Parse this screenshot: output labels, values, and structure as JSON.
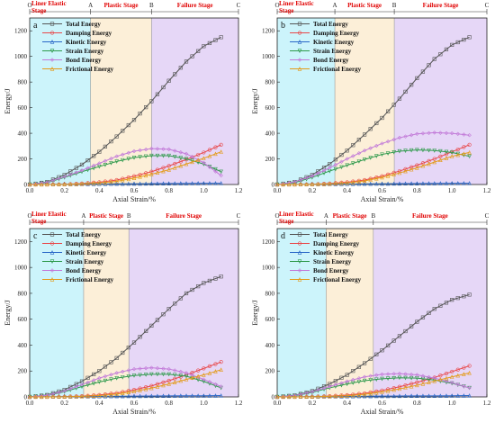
{
  "figure": {
    "background": "#ffffff"
  },
  "stage_colors": {
    "elastic": "#ccf4fb",
    "plastic": "#fcefd8",
    "failure": "#e6d7f7"
  },
  "series_colors": [
    "#555555",
    "#e8484a",
    "#2a68c7",
    "#2f9a4c",
    "#c27ad8",
    "#e39b1a"
  ],
  "stage_label_color": "#e00000",
  "chart_data": [
    {
      "type": "line",
      "panel": "a",
      "xlabel": "Axial Strain/%",
      "ylabel": "Energy/J",
      "xlim": [
        0,
        1.2
      ],
      "ylim": [
        0,
        1300
      ],
      "xticks": [
        "0.0",
        "0.2",
        "0.4",
        "0.6",
        "0.8",
        "1.0",
        "1.2"
      ],
      "yticks": [
        "0",
        "200",
        "400",
        "600",
        "800",
        "1000",
        "1200"
      ],
      "stage_points": [
        {
          "letter": "O",
          "x": 0.0
        },
        {
          "letter": "A",
          "x": 0.35
        },
        {
          "letter": "B",
          "x": 0.7
        },
        {
          "letter": "C",
          "x": 1.2
        }
      ],
      "stages": [
        {
          "name": "Liner Elastic Stage",
          "from": 0.0,
          "to": 0.35
        },
        {
          "name": "Plastic Stage",
          "from": 0.35,
          "to": 0.7
        },
        {
          "name": "Failure Stage",
          "from": 0.7,
          "to": 1.2
        }
      ],
      "x": [
        0.0,
        0.1,
        0.2,
        0.3,
        0.4,
        0.5,
        0.6,
        0.7,
        0.8,
        0.9,
        1.0,
        1.1
      ],
      "series": [
        {
          "name": "Total Energy",
          "values": [
            0,
            20,
            75,
            155,
            255,
            375,
            505,
            650,
            810,
            960,
            1080,
            1150
          ]
        },
        {
          "name": "Damping Energy",
          "values": [
            0,
            0,
            2,
            8,
            18,
            35,
            65,
            100,
            145,
            195,
            250,
            310
          ]
        },
        {
          "name": "Kinetic Energy",
          "values": [
            0,
            1,
            2,
            3,
            4,
            5,
            6,
            7,
            8,
            9,
            10,
            10
          ]
        },
        {
          "name": "Strain Energy",
          "values": [
            0,
            15,
            55,
            100,
            140,
            180,
            210,
            225,
            225,
            200,
            160,
            100
          ]
        },
        {
          "name": "Bond Energy",
          "values": [
            0,
            18,
            60,
            110,
            165,
            220,
            260,
            280,
            275,
            240,
            170,
            70
          ]
        },
        {
          "name": "Frictional Energy",
          "values": [
            0,
            0,
            1,
            5,
            12,
            25,
            50,
            80,
            115,
            160,
            205,
            255
          ]
        }
      ]
    },
    {
      "type": "line",
      "panel": "b",
      "xlabel": "Axial Strain/%",
      "ylabel": "Energy/J",
      "xlim": [
        0,
        1.2
      ],
      "ylim": [
        0,
        1300
      ],
      "xticks": [
        "0.0",
        "0.2",
        "0.4",
        "0.6",
        "0.8",
        "1.0",
        "1.2"
      ],
      "yticks": [
        "0",
        "200",
        "400",
        "600",
        "800",
        "1000",
        "1200"
      ],
      "stage_points": [
        {
          "letter": "O",
          "x": 0.0
        },
        {
          "letter": "A",
          "x": 0.33
        },
        {
          "letter": "B",
          "x": 0.67
        },
        {
          "letter": "C",
          "x": 1.2
        }
      ],
      "stages": [
        {
          "name": "Liner Elastic Stage",
          "from": 0.0,
          "to": 0.33
        },
        {
          "name": "Plastic Stage",
          "from": 0.33,
          "to": 0.67
        },
        {
          "name": "Failure Stage",
          "from": 0.67,
          "to": 1.2
        }
      ],
      "x": [
        0.0,
        0.1,
        0.2,
        0.3,
        0.4,
        0.5,
        0.6,
        0.7,
        0.8,
        0.9,
        1.0,
        1.1
      ],
      "series": [
        {
          "name": "Total Energy",
          "values": [
            0,
            20,
            75,
            160,
            265,
            390,
            520,
            670,
            830,
            980,
            1090,
            1150
          ]
        },
        {
          "name": "Damping Energy",
          "values": [
            0,
            0,
            2,
            8,
            18,
            35,
            65,
            105,
            150,
            200,
            255,
            310
          ]
        },
        {
          "name": "Kinetic Energy",
          "values": [
            0,
            1,
            2,
            3,
            4,
            5,
            6,
            7,
            8,
            9,
            10,
            10
          ]
        },
        {
          "name": "Strain Energy",
          "values": [
            0,
            15,
            55,
            105,
            150,
            195,
            235,
            260,
            270,
            265,
            250,
            220
          ]
        },
        {
          "name": "Bond Energy",
          "values": [
            0,
            20,
            65,
            130,
            200,
            265,
            320,
            365,
            395,
            405,
            400,
            385
          ]
        },
        {
          "name": "Frictional Energy",
          "values": [
            0,
            0,
            1,
            5,
            12,
            28,
            55,
            90,
            130,
            175,
            220,
            250
          ]
        }
      ]
    },
    {
      "type": "line",
      "panel": "c",
      "xlabel": "Axial Strain/%",
      "ylabel": "Energy/J",
      "xlim": [
        0,
        1.2
      ],
      "ylim": [
        0,
        1300
      ],
      "xticks": [
        "0.0",
        "0.2",
        "0.4",
        "0.6",
        "0.8",
        "1.0",
        "1.2"
      ],
      "yticks": [
        "0",
        "200",
        "400",
        "600",
        "800",
        "1000",
        "1200"
      ],
      "stage_points": [
        {
          "letter": "O",
          "x": 0.0
        },
        {
          "letter": "A",
          "x": 0.31
        },
        {
          "letter": "B",
          "x": 0.57
        },
        {
          "letter": "C",
          "x": 1.2
        }
      ],
      "stages": [
        {
          "name": "Liner Elastic Stage",
          "from": 0.0,
          "to": 0.31
        },
        {
          "name": "Plastic Stage",
          "from": 0.31,
          "to": 0.57
        },
        {
          "name": "Failure Stage",
          "from": 0.57,
          "to": 1.2
        }
      ],
      "x": [
        0.0,
        0.1,
        0.2,
        0.3,
        0.4,
        0.5,
        0.6,
        0.7,
        0.8,
        0.9,
        1.0,
        1.1
      ],
      "series": [
        {
          "name": "Total Energy",
          "values": [
            0,
            15,
            55,
            120,
            200,
            300,
            420,
            550,
            680,
            800,
            880,
            930
          ]
        },
        {
          "name": "Damping Energy",
          "values": [
            0,
            0,
            2,
            6,
            15,
            30,
            55,
            85,
            125,
            170,
            220,
            270
          ]
        },
        {
          "name": "Kinetic Energy",
          "values": [
            0,
            1,
            2,
            3,
            4,
            5,
            6,
            7,
            8,
            9,
            9,
            10
          ]
        },
        {
          "name": "Strain Energy",
          "values": [
            0,
            10,
            40,
            80,
            115,
            145,
            165,
            175,
            175,
            160,
            120,
            70
          ]
        },
        {
          "name": "Bond Energy",
          "values": [
            0,
            12,
            45,
            95,
            145,
            185,
            215,
            225,
            215,
            185,
            135,
            80
          ]
        },
        {
          "name": "Frictional Energy",
          "values": [
            0,
            0,
            1,
            4,
            10,
            22,
            42,
            68,
            100,
            135,
            170,
            210
          ]
        }
      ]
    },
    {
      "type": "line",
      "panel": "d",
      "xlabel": "Axial Strain/%",
      "ylabel": "Energy/J",
      "xlim": [
        0,
        1.2
      ],
      "ylim": [
        0,
        1300
      ],
      "xticks": [
        "0.0",
        "0.2",
        "0.4",
        "0.6",
        "0.8",
        "1.0",
        "1.2"
      ],
      "yticks": [
        "0",
        "200",
        "400",
        "600",
        "800",
        "1000",
        "1200"
      ],
      "stage_points": [
        {
          "letter": "O",
          "x": 0.0
        },
        {
          "letter": "A",
          "x": 0.28
        },
        {
          "letter": "B",
          "x": 0.55
        },
        {
          "letter": "C",
          "x": 1.2
        }
      ],
      "stages": [
        {
          "name": "Liner Elastic Stage",
          "from": 0.0,
          "to": 0.28
        },
        {
          "name": "Plastic Stage",
          "from": 0.28,
          "to": 0.55
        },
        {
          "name": "Failure Stage",
          "from": 0.55,
          "to": 1.2
        }
      ],
      "x": [
        0.0,
        0.1,
        0.2,
        0.3,
        0.4,
        0.5,
        0.6,
        0.7,
        0.8,
        0.9,
        1.0,
        1.1
      ],
      "series": [
        {
          "name": "Total Energy",
          "values": [
            0,
            12,
            45,
            100,
            170,
            260,
            360,
            470,
            580,
            680,
            750,
            790
          ]
        },
        {
          "name": "Damping Energy",
          "values": [
            0,
            0,
            2,
            6,
            14,
            28,
            50,
            78,
            112,
            150,
            195,
            240
          ]
        },
        {
          "name": "Kinetic Energy",
          "values": [
            0,
            1,
            2,
            3,
            4,
            5,
            6,
            7,
            8,
            8,
            9,
            10
          ]
        },
        {
          "name": "Strain Energy",
          "values": [
            0,
            8,
            35,
            70,
            100,
            125,
            140,
            148,
            145,
            130,
            105,
            70
          ]
        },
        {
          "name": "Bond Energy",
          "values": [
            0,
            10,
            40,
            80,
            120,
            155,
            175,
            180,
            170,
            145,
            110,
            70
          ]
        },
        {
          "name": "Frictional Energy",
          "values": [
            0,
            0,
            1,
            4,
            9,
            20,
            38,
            62,
            90,
            122,
            155,
            185
          ]
        }
      ]
    }
  ]
}
